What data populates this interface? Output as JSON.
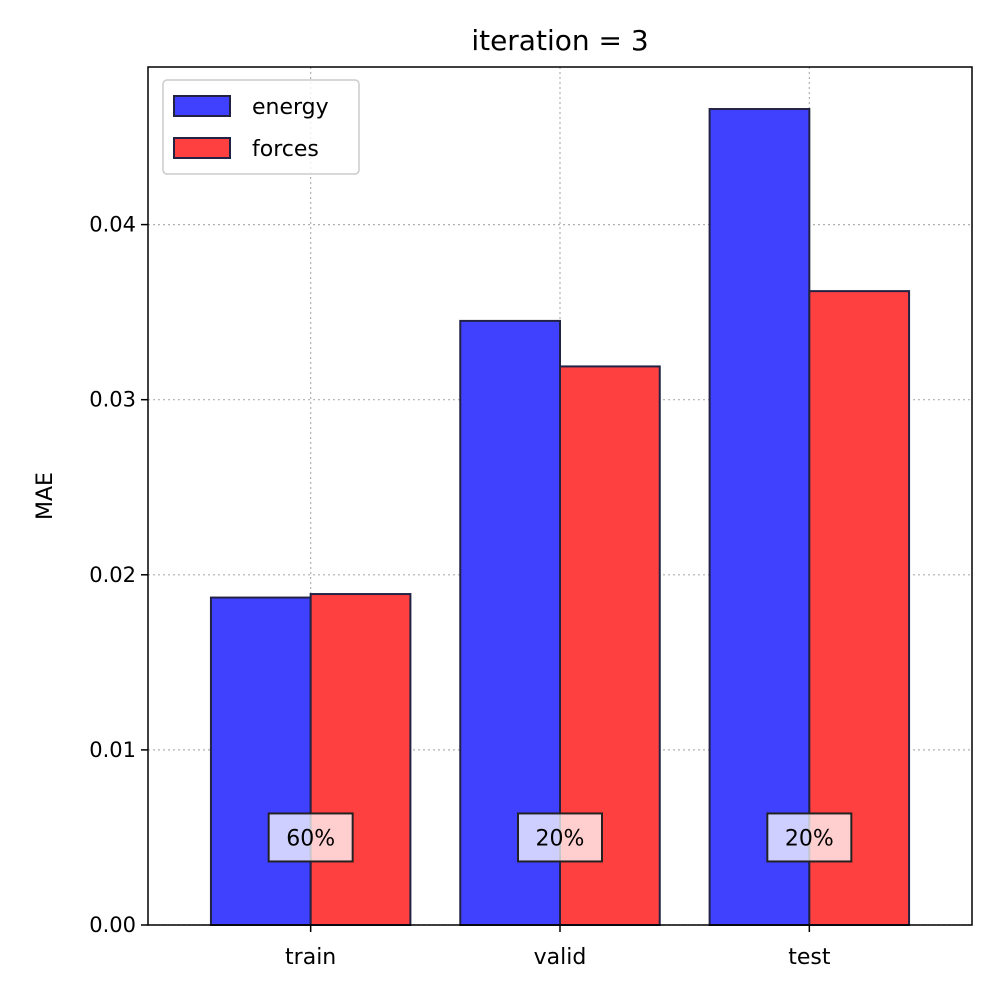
{
  "chart_data": {
    "type": "bar",
    "title": "iteration = 3",
    "xlabel": "",
    "ylabel": "MAE",
    "categories": [
      "train",
      "valid",
      "test"
    ],
    "series": [
      {
        "name": "energy",
        "color": "#4040ff",
        "values": [
          0.0187,
          0.0345,
          0.0466
        ]
      },
      {
        "name": "forces",
        "color": "#ff4040",
        "values": [
          0.0189,
          0.0319,
          0.0362
        ]
      }
    ],
    "annotations": [
      "60%",
      "20%",
      "20%"
    ],
    "annotation_y": 0.005,
    "ylim": [
      0,
      0.049
    ],
    "yticks": [
      0.0,
      0.01,
      0.02,
      0.03,
      0.04
    ],
    "ytick_labels": [
      "0.00",
      "0.01",
      "0.02",
      "0.03",
      "0.04"
    ],
    "grid": true,
    "legend_position": "upper-left"
  }
}
